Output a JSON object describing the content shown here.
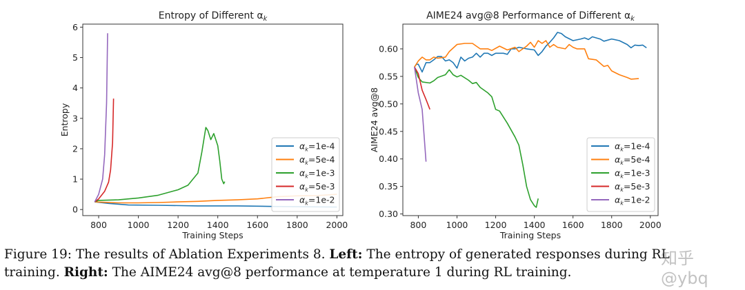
{
  "chart_data": [
    {
      "type": "line",
      "title": "Entropy of Different α_k",
      "title_main": "Entropy of Different α",
      "title_sub": "k",
      "xlabel": "Training Steps",
      "ylabel": "Entropy",
      "xlim": [
        720,
        2030
      ],
      "ylim": [
        -0.2,
        6.1
      ],
      "xticks": [
        800,
        1000,
        1200,
        1400,
        1600,
        1800,
        2000
      ],
      "yticks": [
        0,
        1,
        2,
        3,
        4,
        5,
        6
      ],
      "grid": false,
      "legend": "bottom-right",
      "series": [
        {
          "name": "αk=1e-4",
          "label_value": "=1e-4",
          "color": "#1f77b4",
          "x": [
            780,
            850,
            950,
            1100,
            1300,
            1500,
            1700,
            1850,
            2000
          ],
          "y": [
            0.25,
            0.2,
            0.15,
            0.14,
            0.12,
            0.12,
            0.1,
            0.09,
            0.08
          ]
        },
        {
          "name": "αk=5e-4",
          "label_value": "=5e-4",
          "color": "#ff7f0e",
          "x": [
            780,
            900,
            1000,
            1100,
            1200,
            1300,
            1400,
            1500,
            1600,
            1700,
            1800,
            1900,
            2000
          ],
          "y": [
            0.25,
            0.22,
            0.22,
            0.23,
            0.25,
            0.27,
            0.3,
            0.32,
            0.35,
            0.42,
            0.45,
            0.46,
            0.5
          ]
        },
        {
          "name": "αk=1e-3",
          "label_value": "=1e-3",
          "color": "#2ca02c",
          "x": [
            780,
            800,
            900,
            1000,
            1100,
            1200,
            1250,
            1300,
            1320,
            1340,
            1350,
            1365,
            1380,
            1400,
            1410,
            1420,
            1430,
            1435
          ],
          "y": [
            0.25,
            0.3,
            0.32,
            0.38,
            0.47,
            0.65,
            0.8,
            1.2,
            1.9,
            2.7,
            2.6,
            2.3,
            2.5,
            2.1,
            1.6,
            1.0,
            0.85,
            0.92
          ]
        },
        {
          "name": "αk=5e-3",
          "label_value": "=5e-3",
          "color": "#d62728",
          "x": [
            780,
            800,
            830,
            850,
            860,
            870,
            875
          ],
          "y": [
            0.25,
            0.35,
            0.6,
            0.9,
            1.3,
            2.2,
            3.65
          ]
        },
        {
          "name": "αk=1e-2",
          "label_value": "=1e-2",
          "color": "#9467bd",
          "x": [
            780,
            800,
            820,
            830,
            840,
            845
          ],
          "y": [
            0.25,
            0.5,
            1.0,
            1.8,
            3.5,
            5.8
          ]
        }
      ]
    },
    {
      "type": "line",
      "title": "AIME24 avg@8 Performance of Different α_k",
      "title_main": "AIME24 avg@8 Performance of Different α",
      "title_sub": "k",
      "xlabel": "Training Steps",
      "ylabel": "AIME24 avg@8",
      "xlim": [
        720,
        2040
      ],
      "ylim": [
        0.297,
        0.645
      ],
      "xticks": [
        800,
        1000,
        1200,
        1400,
        1600,
        1800,
        2000
      ],
      "yticks": [
        "0.30",
        "0.35",
        "0.40",
        "0.45",
        "0.50",
        "0.55",
        "0.60"
      ],
      "grid": false,
      "legend": "bottom-right",
      "series": [
        {
          "name": "αk=1e-4",
          "label_value": "=1e-4",
          "color": "#1f77b4",
          "x": [
            780,
            790,
            800,
            820,
            840,
            860,
            880,
            900,
            920,
            940,
            960,
            980,
            1000,
            1020,
            1040,
            1060,
            1080,
            1100,
            1120,
            1140,
            1160,
            1180,
            1200,
            1240,
            1260,
            1280,
            1300,
            1320,
            1360,
            1400,
            1420,
            1440,
            1460,
            1480,
            1500,
            1520,
            1540,
            1560,
            1600,
            1640,
            1660,
            1680,
            1700,
            1740,
            1760,
            1800,
            1840,
            1880,
            1900,
            1920,
            1940,
            1960,
            1980
          ],
          "y": [
            0.567,
            0.572,
            0.572,
            0.558,
            0.575,
            0.575,
            0.58,
            0.586,
            0.586,
            0.578,
            0.58,
            0.575,
            0.565,
            0.585,
            0.578,
            0.583,
            0.585,
            0.592,
            0.585,
            0.592,
            0.592,
            0.588,
            0.592,
            0.592,
            0.59,
            0.6,
            0.6,
            0.603,
            0.6,
            0.598,
            0.588,
            0.595,
            0.605,
            0.612,
            0.62,
            0.63,
            0.628,
            0.622,
            0.615,
            0.618,
            0.62,
            0.617,
            0.622,
            0.618,
            0.614,
            0.618,
            0.615,
            0.608,
            0.602,
            0.607,
            0.606,
            0.607,
            0.602
          ]
        },
        {
          "name": "αk=5e-4",
          "label_value": "=5e-4",
          "color": "#ff7f0e",
          "x": [
            780,
            800,
            820,
            840,
            860,
            880,
            900,
            940,
            960,
            1000,
            1040,
            1080,
            1120,
            1160,
            1180,
            1220,
            1260,
            1300,
            1320,
            1360,
            1380,
            1400,
            1420,
            1440,
            1460,
            1480,
            1500,
            1520,
            1560,
            1580,
            1600,
            1620,
            1660,
            1680,
            1720,
            1760,
            1780,
            1800,
            1840,
            1880,
            1900,
            1940
          ],
          "y": [
            0.567,
            0.578,
            0.585,
            0.58,
            0.58,
            0.585,
            0.583,
            0.585,
            0.595,
            0.608,
            0.61,
            0.61,
            0.6,
            0.6,
            0.597,
            0.605,
            0.598,
            0.603,
            0.595,
            0.605,
            0.612,
            0.603,
            0.615,
            0.61,
            0.615,
            0.603,
            0.608,
            0.603,
            0.6,
            0.608,
            0.603,
            0.6,
            0.6,
            0.582,
            0.58,
            0.568,
            0.57,
            0.56,
            0.553,
            0.548,
            0.545,
            0.546
          ]
        },
        {
          "name": "αk=1e-3",
          "label_value": "=1e-3",
          "color": "#2ca02c",
          "x": [
            780,
            800,
            820,
            860,
            880,
            900,
            940,
            960,
            980,
            1000,
            1020,
            1060,
            1080,
            1100,
            1120,
            1160,
            1180,
            1200,
            1220,
            1260,
            1300,
            1320,
            1340,
            1360,
            1380,
            1400,
            1410,
            1420
          ],
          "y": [
            0.567,
            0.548,
            0.54,
            0.538,
            0.542,
            0.548,
            0.553,
            0.562,
            0.553,
            0.549,
            0.552,
            0.543,
            0.537,
            0.539,
            0.53,
            0.52,
            0.513,
            0.49,
            0.487,
            0.465,
            0.44,
            0.425,
            0.39,
            0.35,
            0.326,
            0.315,
            0.312,
            0.328
          ]
        },
        {
          "name": "αk=5e-3",
          "label_value": "=5e-3",
          "color": "#d62728",
          "x": [
            780,
            800,
            820,
            840,
            860
          ],
          "y": [
            0.567,
            0.555,
            0.525,
            0.508,
            0.49
          ]
        },
        {
          "name": "αk=1e-2",
          "label_value": "=1e-2",
          "color": "#9467bd",
          "x": [
            780,
            800,
            820,
            840
          ],
          "y": [
            0.567,
            0.52,
            0.49,
            0.395
          ]
        }
      ]
    }
  ],
  "caption": {
    "line1_prefix": "Figure 19: The results of Ablation Experiments 8.",
    "left_label": "Left:",
    "line1_suffix": "The entropy of generated responses during RL",
    "line2_prefix": "training.",
    "right_label": "Right:",
    "line2_suffix": "The AIME24 avg@8 performance at temperature 1 during RL training."
  },
  "watermark": "知乎 @ybq"
}
